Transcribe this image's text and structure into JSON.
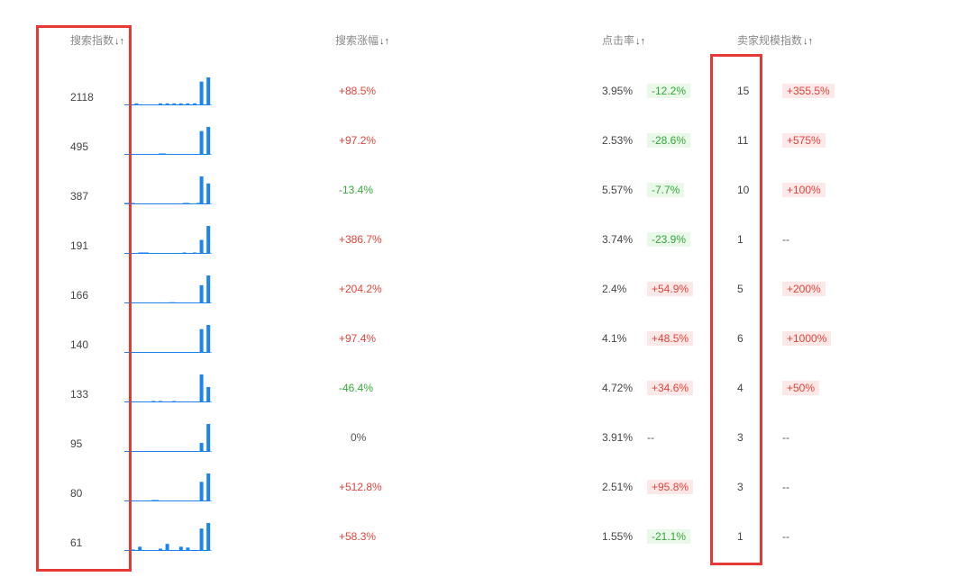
{
  "headers": {
    "search_index": "搜索指数",
    "search_growth": "搜索涨幅",
    "ctr": "点击率",
    "seller_scale": "卖家规模指数",
    "sort_glyph": "↓↑"
  },
  "colors": {
    "up": "#e0453a",
    "down": "#35a83b",
    "bar": "#1a84f5",
    "highlight_box": "#e53935"
  },
  "rows": [
    {
      "index": "2118",
      "growth": "+88.5%",
      "growth_dir": "up",
      "ctr": "3.95%",
      "ctr_change": "-12.2%",
      "ctr_dir": "down",
      "seller": "15",
      "seller_change": "+355.5%",
      "seller_dir": "up",
      "trend": [
        0.02,
        0.02,
        0.02,
        0.07,
        0.02,
        0.02,
        0.02,
        0.02,
        0.02,
        0.02,
        0.07,
        0.02,
        0.07,
        0.02,
        0.07,
        0.02,
        0.07,
        0.02,
        0.07,
        0.02,
        0.07,
        0.02,
        0.85,
        0.02,
        1.0
      ]
    },
    {
      "index": "495",
      "growth": "+97.2%",
      "growth_dir": "up",
      "ctr": "2.53%",
      "ctr_change": "-28.6%",
      "ctr_dir": "down",
      "seller": "11",
      "seller_change": "+575%",
      "seller_dir": "up",
      "trend": [
        0.02,
        0.02,
        0.02,
        0.02,
        0.02,
        0.02,
        0.02,
        0.02,
        0.02,
        0.02,
        0.05,
        0.05,
        0.02,
        0.02,
        0.02,
        0.02,
        0.02,
        0.02,
        0.02,
        0.02,
        0.02,
        0.02,
        0.85,
        0.02,
        1.0
      ]
    },
    {
      "index": "387",
      "growth": "-13.4%",
      "growth_dir": "down",
      "ctr": "5.57%",
      "ctr_change": "-7.7%",
      "ctr_dir": "down",
      "seller": "10",
      "seller_change": "+100%",
      "seller_dir": "up",
      "trend": [
        0.05,
        0.05,
        0.05,
        0.02,
        0.02,
        0.02,
        0.02,
        0.02,
        0.02,
        0.02,
        0.02,
        0.02,
        0.02,
        0.02,
        0.02,
        0.02,
        0.02,
        0.05,
        0.05,
        0.02,
        0.02,
        0.05,
        1.0,
        0.02,
        0.75
      ]
    },
    {
      "index": "191",
      "growth": "+386.7%",
      "growth_dir": "up",
      "ctr": "3.74%",
      "ctr_change": "-23.9%",
      "ctr_dir": "down",
      "seller": "1",
      "seller_change": "--",
      "seller_dir": "none",
      "trend": [
        0.02,
        0.02,
        0.02,
        0.02,
        0.05,
        0.05,
        0.05,
        0.02,
        0.02,
        0.02,
        0.02,
        0.02,
        0.02,
        0.02,
        0.02,
        0.02,
        0.02,
        0.05,
        0.02,
        0.02,
        0.05,
        0.02,
        0.5,
        0.02,
        1.0
      ]
    },
    {
      "index": "166",
      "growth": "+204.2%",
      "growth_dir": "up",
      "ctr": "2.4%",
      "ctr_change": "+54.9%",
      "ctr_dir": "up",
      "seller": "5",
      "seller_change": "+200%",
      "seller_dir": "up",
      "trend": [
        0.02,
        0.02,
        0.02,
        0.02,
        0.02,
        0.02,
        0.02,
        0.02,
        0.02,
        0.02,
        0.02,
        0.02,
        0.02,
        0.04,
        0.04,
        0.02,
        0.02,
        0.02,
        0.02,
        0.02,
        0.02,
        0.02,
        0.65,
        0.02,
        1.0
      ]
    },
    {
      "index": "140",
      "growth": "+97.4%",
      "growth_dir": "up",
      "ctr": "4.1%",
      "ctr_change": "+48.5%",
      "ctr_dir": "up",
      "seller": "6",
      "seller_change": "+1000%",
      "seller_dir": "up",
      "trend": [
        0.02,
        0.02,
        0.02,
        0.02,
        0.02,
        0.02,
        0.02,
        0.02,
        0.02,
        0.02,
        0.02,
        0.02,
        0.02,
        0.02,
        0.02,
        0.02,
        0.02,
        0.02,
        0.02,
        0.02,
        0.02,
        0.02,
        0.85,
        0.02,
        1.0
      ]
    },
    {
      "index": "133",
      "growth": "-46.4%",
      "growth_dir": "down",
      "ctr": "4.72%",
      "ctr_change": "+34.6%",
      "ctr_dir": "up",
      "seller": "4",
      "seller_change": "+50%",
      "seller_dir": "up",
      "trend": [
        0.02,
        0.02,
        0.02,
        0.02,
        0.02,
        0.02,
        0.02,
        0.02,
        0.05,
        0.02,
        0.05,
        0.02,
        0.02,
        0.02,
        0.05,
        0.02,
        0.02,
        0.02,
        0.02,
        0.02,
        0.02,
        0.02,
        1.0,
        0.02,
        0.55
      ]
    },
    {
      "index": "95",
      "growth": "0%",
      "growth_dir": "neutral",
      "ctr": "3.91%",
      "ctr_change": "--",
      "ctr_dir": "none",
      "seller": "3",
      "seller_change": "--",
      "seller_dir": "none",
      "trend": [
        0.02,
        0.02,
        0.02,
        0.02,
        0.02,
        0.02,
        0.02,
        0.02,
        0.02,
        0.02,
        0.02,
        0.02,
        0.02,
        0.02,
        0.02,
        0.02,
        0.02,
        0.02,
        0.02,
        0.02,
        0.02,
        0.02,
        0.32,
        0.02,
        1.0
      ]
    },
    {
      "index": "80",
      "growth": "+512.8%",
      "growth_dir": "up",
      "ctr": "2.51%",
      "ctr_change": "+95.8%",
      "ctr_dir": "up",
      "seller": "3",
      "seller_change": "--",
      "seller_dir": "none",
      "trend": [
        0.02,
        0.02,
        0.02,
        0.02,
        0.02,
        0.02,
        0.02,
        0.02,
        0.05,
        0.05,
        0.02,
        0.02,
        0.02,
        0.02,
        0.02,
        0.02,
        0.02,
        0.02,
        0.02,
        0.02,
        0.02,
        0.02,
        0.7,
        0.02,
        1.0
      ]
    },
    {
      "index": "61",
      "growth": "+58.3%",
      "growth_dir": "up",
      "ctr": "1.55%",
      "ctr_change": "-21.1%",
      "ctr_dir": "down",
      "seller": "1",
      "seller_change": "--",
      "seller_dir": "none",
      "trend": [
        0.02,
        0.02,
        0.05,
        0.02,
        0.15,
        0.02,
        0.02,
        0.02,
        0.02,
        0.02,
        0.08,
        0.02,
        0.25,
        0.02,
        0.02,
        0.02,
        0.15,
        0.02,
        0.12,
        0.02,
        0.02,
        0.02,
        0.8,
        0.02,
        1.0
      ]
    }
  ]
}
